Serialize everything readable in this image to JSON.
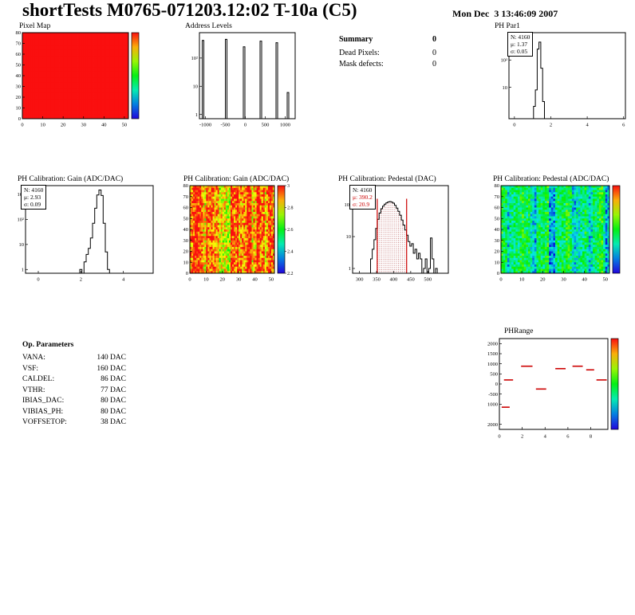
{
  "page": {
    "title": "shortTests M0765-071203.12:02 T-10a (C5)",
    "timestamp": "Mon Dec  3 13:46:09 2007"
  },
  "summary": {
    "title": "Summary",
    "value": "0",
    "rows": [
      {
        "label": "Dead Pixels:",
        "value": "0"
      },
      {
        "label": "Mask defects:",
        "value": "0"
      }
    ]
  },
  "op_parameters": {
    "title": "Op. Parameters",
    "rows": [
      {
        "name": "VANA:",
        "value": "140 DAC"
      },
      {
        "name": "VSF:",
        "value": "160 DAC"
      },
      {
        "name": "CALDEL:",
        "value": "86 DAC"
      },
      {
        "name": "VTHR:",
        "value": "77 DAC"
      },
      {
        "name": "IBIAS_DAC:",
        "value": "80 DAC"
      },
      {
        "name": "VIBIAS_PH:",
        "value": "80 DAC"
      },
      {
        "name": "VOFFSETOP:",
        "value": "38 DAC"
      }
    ]
  },
  "chart_data": [
    {
      "id": "pixel_map",
      "type": "heatmap",
      "title": "Pixel Map",
      "xlim": [
        0,
        52
      ],
      "ylim": [
        0,
        80
      ],
      "x_ticks": [
        0,
        10,
        20,
        30,
        40,
        50
      ],
      "y_ticks": [
        0,
        10,
        20,
        30,
        40,
        50,
        60,
        70,
        80
      ],
      "z_base": 1.0,
      "z_spread": 0.0,
      "stripes": [],
      "colorbar": {
        "labels": []
      }
    },
    {
      "id": "address_levels",
      "type": "histogram",
      "title": "Address Levels",
      "xlim": [
        -1150,
        1250
      ],
      "x_ticks": [
        -1000,
        -500,
        0,
        500,
        1000
      ],
      "ylog": {
        "min_exp": -0.15,
        "max_exp": 2.9
      },
      "y_decade_labels": [
        {
          "exp": 2,
          "label": "10²"
        },
        {
          "exp": 1,
          "label": "10"
        },
        {
          "exp": 0,
          "label": "1"
        }
      ],
      "bin_width": 40,
      "bins": [
        [
          -1060,
          420
        ],
        [
          -480,
          460
        ],
        [
          -30,
          250
        ],
        [
          390,
          400
        ],
        [
          790,
          350
        ],
        [
          1070,
          6
        ]
      ]
    },
    {
      "id": "ph_par1",
      "type": "histogram",
      "title": "PH Par1",
      "stats": {
        "n": "N: 4160",
        "mu": "μ: 1.37",
        "sigma": "σ: 0.05"
      },
      "xlim": [
        -0.3,
        6.1
      ],
      "x_ticks": [
        0,
        2,
        4,
        6
      ],
      "ylog": {
        "min_exp": -0.15,
        "max_exp": 3.0
      },
      "y_decade_labels": [
        {
          "exp": 2,
          "label": "10²"
        },
        {
          "exp": 1,
          "label": "10"
        }
      ],
      "bin_width": 0.1,
      "bins": [
        [
          1.1,
          2
        ],
        [
          1.2,
          8
        ],
        [
          1.3,
          250
        ],
        [
          1.4,
          450
        ],
        [
          1.5,
          50
        ],
        [
          1.6,
          3
        ]
      ]
    },
    {
      "id": "gain_1d",
      "type": "histogram",
      "title": "PH Calibration: Gain (ADC/DAC)",
      "stats": {
        "n": "N: 4160",
        "mu": "μ: 2.93",
        "sigma": "σ: 0.09"
      },
      "xlim": [
        -0.6,
        5.4
      ],
      "x_ticks": [
        0,
        2,
        4
      ],
      "ylog": {
        "min_exp": -0.15,
        "max_exp": 3.35
      },
      "y_decade_labels": [
        {
          "exp": 3,
          "label": "10³"
        },
        {
          "exp": 2,
          "label": "10²"
        },
        {
          "exp": 1,
          "label": "10"
        },
        {
          "exp": 0,
          "label": "1"
        }
      ],
      "bin_width": 0.1,
      "bins": [
        [
          2.0,
          1
        ],
        [
          2.2,
          2
        ],
        [
          2.3,
          4
        ],
        [
          2.4,
          7
        ],
        [
          2.5,
          18
        ],
        [
          2.6,
          70
        ],
        [
          2.7,
          280
        ],
        [
          2.8,
          950
        ],
        [
          2.9,
          1500
        ],
        [
          3.0,
          900
        ],
        [
          3.1,
          70
        ],
        [
          3.2,
          5
        ],
        [
          3.3,
          1
        ]
      ]
    },
    {
      "id": "gain_2d",
      "type": "heatmap",
      "title": "PH Calibration: Gain (ADC/DAC)",
      "xlim": [
        0,
        52
      ],
      "ylim": [
        0,
        80
      ],
      "x_ticks": [
        0,
        10,
        20,
        30,
        40,
        50
      ],
      "y_ticks": [
        0,
        10,
        20,
        30,
        40,
        50,
        60,
        70,
        80
      ],
      "zlim": [
        2.2,
        3.0
      ],
      "z_base": 0.93,
      "z_spread": 0.35,
      "stripes": [
        {
          "from": 8,
          "to": 9,
          "offset": -0.12
        },
        {
          "from": 18,
          "to": 24,
          "offset": -0.22
        },
        {
          "from": 30,
          "to": 31,
          "offset": -0.1
        },
        {
          "from": 38,
          "to": 40,
          "offset": -0.15
        },
        {
          "from": 46,
          "to": 47,
          "offset": -0.12
        }
      ],
      "colorbar": {
        "labels": [
          "3",
          "2.8",
          "2.6",
          "2.4",
          "2.2"
        ]
      }
    },
    {
      "id": "pedestal_dac",
      "type": "histogram",
      "title": "PH Calibration: Pedestal (DAC)",
      "stats": {
        "n": "N: 4160",
        "mu": "μ: 390.2",
        "sigma": "σ: 20.9"
      },
      "xlim": [
        280,
        560
      ],
      "x_ticks": [
        300,
        350,
        400,
        450,
        500
      ],
      "ylog": {
        "min_exp": -0.15,
        "max_exp": 2.6
      },
      "y_decade_labels": [
        {
          "exp": 2,
          "label": "10²"
        },
        {
          "exp": 1,
          "label": "10"
        },
        {
          "exp": 0,
          "label": "1"
        }
      ],
      "bin_width": 5,
      "bins": [
        [
          335,
          2
        ],
        [
          340,
          4
        ],
        [
          345,
          8
        ],
        [
          350,
          18
        ],
        [
          355,
          35
        ],
        [
          360,
          55
        ],
        [
          365,
          75
        ],
        [
          370,
          90
        ],
        [
          375,
          105
        ],
        [
          380,
          115
        ],
        [
          385,
          122
        ],
        [
          390,
          126
        ],
        [
          395,
          121
        ],
        [
          400,
          112
        ],
        [
          405,
          96
        ],
        [
          410,
          78
        ],
        [
          415,
          62
        ],
        [
          420,
          47
        ],
        [
          425,
          33
        ],
        [
          430,
          23
        ],
        [
          435,
          16
        ],
        [
          440,
          11
        ],
        [
          445,
          7
        ],
        [
          450,
          5
        ],
        [
          455,
          6
        ],
        [
          460,
          3
        ],
        [
          465,
          4
        ],
        [
          470,
          2
        ],
        [
          475,
          3
        ],
        [
          480,
          2
        ],
        [
          490,
          1
        ],
        [
          495,
          2
        ],
        [
          505,
          1
        ],
        [
          510,
          9
        ],
        [
          515,
          2
        ],
        [
          525,
          1
        ]
      ],
      "vlines": [
        {
          "x": 352,
          "color": "#cc0000"
        },
        {
          "x": 438,
          "color": "#cc0000"
        }
      ],
      "hatch_range": [
        352,
        438
      ]
    },
    {
      "id": "pedestal_2d",
      "type": "heatmap",
      "title": "PH Calibration: Pedestal (ADC/DAC)",
      "xlim": [
        0,
        52
      ],
      "ylim": [
        0,
        80
      ],
      "x_ticks": [
        0,
        10,
        20,
        30,
        40,
        50
      ],
      "y_ticks": [
        0,
        10,
        20,
        30,
        40,
        50,
        60,
        70,
        80
      ],
      "z_base": 0.45,
      "z_spread": 0.3,
      "stripes": [
        {
          "from": 3,
          "to": 4,
          "offset": -0.15
        },
        {
          "from": 14,
          "to": 16,
          "offset": -0.2
        },
        {
          "from": 23,
          "to": 25,
          "offset": -0.22
        },
        {
          "from": 34,
          "to": 37,
          "offset": -0.18
        },
        {
          "from": 42,
          "to": 43,
          "offset": -0.12
        },
        {
          "from": 50,
          "to": 51,
          "offset": -0.18
        }
      ],
      "colorbar": {
        "labels": []
      }
    },
    {
      "id": "ph_range",
      "type": "segments",
      "title": "PHRange",
      "xlim": [
        0,
        9.5
      ],
      "x_ticks": [
        0,
        2,
        4,
        6,
        8
      ],
      "ylim": [
        -2250,
        2250
      ],
      "y_ticks": [
        {
          "value": 2000,
          "label": "2000"
        },
        {
          "value": 1500,
          "label": "1500"
        },
        {
          "value": 1000,
          "label": "1000"
        },
        {
          "value": 500,
          "label": "500"
        },
        {
          "value": 0,
          "label": "0"
        },
        {
          "value": -500,
          "label": "-500"
        },
        {
          "value": -1000,
          "label": "1000"
        },
        {
          "value": -2000,
          "label": "2000"
        }
      ],
      "segments": [
        {
          "x1": 1.9,
          "x2": 2.9,
          "y": 880
        },
        {
          "x1": 4.9,
          "x2": 5.8,
          "y": 760
        },
        {
          "x1": 6.4,
          "x2": 7.3,
          "y": 880
        },
        {
          "x1": 7.6,
          "x2": 8.3,
          "y": 700
        },
        {
          "x1": 0.4,
          "x2": 1.2,
          "y": 200
        },
        {
          "x1": 8.5,
          "x2": 9.4,
          "y": 200
        },
        {
          "x1": 3.2,
          "x2": 4.1,
          "y": -250
        },
        {
          "x1": 0.2,
          "x2": 0.9,
          "y": -1150
        }
      ],
      "color": "#cc0000",
      "colorbar": {
        "labels": []
      }
    }
  ]
}
